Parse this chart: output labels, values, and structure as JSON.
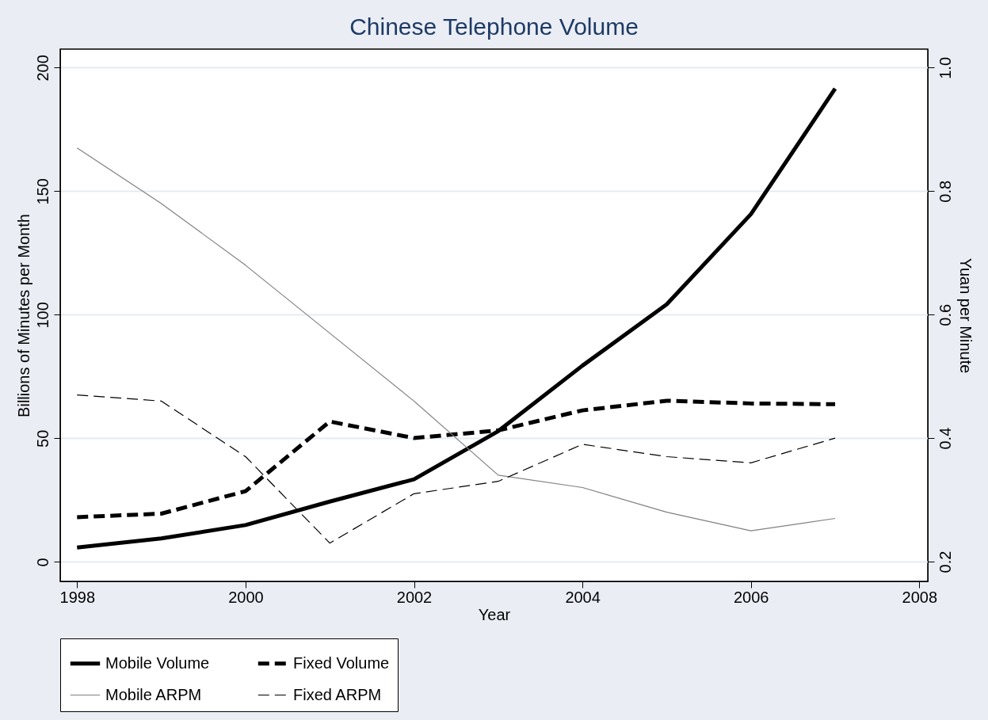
{
  "chart_data": {
    "type": "line",
    "title": "Chinese Telephone Volume",
    "xlabel": "Year",
    "ylabel": "Billions of Minutes per Month",
    "y2label": "Yuan per Minute",
    "x": [
      1998,
      1999,
      2000,
      2001,
      2002,
      2003,
      2004,
      2005,
      2006,
      2007
    ],
    "series": [
      {
        "name": "Mobile Volume",
        "color": "#000000",
        "line_style": "solid",
        "values": [
          5.8,
          9.5,
          14.9,
          24.4,
          33.4,
          52.9,
          79.4,
          104.2,
          140.7,
          191.5
        ]
      },
      {
        "name": "Fixed Volume",
        "color": "#000000",
        "line_style": "dashed",
        "values": [
          18.1,
          19.5,
          28.6,
          56.8,
          50.1,
          53.2,
          61.3,
          65.2,
          64.1,
          63.8
        ]
      },
      {
        "name": "Mobile ARPM",
        "color": "#808080",
        "line_style": "solid",
        "axis": "y2",
        "values": [
          0.87,
          0.78,
          0.68,
          0.57,
          0.46,
          0.34,
          0.32,
          0.28,
          0.25,
          0.27
        ]
      },
      {
        "name": "Fixed ARPM",
        "color": "#000000",
        "line_style": "dashed",
        "axis": "y2",
        "values": [
          0.47,
          0.46,
          0.37,
          0.23,
          0.31,
          0.33,
          0.39,
          0.37,
          0.36,
          0.4
        ]
      }
    ],
    "xlim": [
      1997.8,
      2008.1
    ],
    "xticks": [
      1998,
      2000,
      2002,
      2004,
      2006,
      2008
    ],
    "ylim": [
      -7.9,
      207.5
    ],
    "yticks": [
      0,
      50,
      100,
      150,
      200
    ],
    "y2lim": [
      0.168,
      1.03
    ],
    "y2ticks": [
      0.2,
      0.4,
      0.6,
      0.8,
      {
        "value": 1,
        "label": "1.0"
      }
    ],
    "grid": "y",
    "legend": "bottom"
  }
}
